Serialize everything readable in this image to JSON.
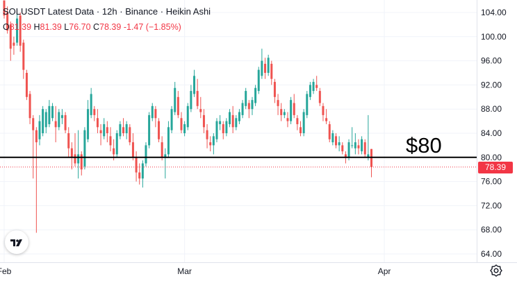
{
  "legend": {
    "symbol": "SOLUSDT",
    "title": "Latest Data",
    "interval": "12h",
    "exchange": "Binance",
    "style": "Heikin Ashi"
  },
  "ohlc": {
    "o_label": "O",
    "o_value": "81.39",
    "h_label": "H",
    "h_value": "81.39",
    "l_label": "L",
    "l_value": "76.70",
    "c_label": "C",
    "c_value": "78.39",
    "change": "-1.47 (−1.85%)"
  },
  "annotation": {
    "text": "$80",
    "level": 80
  },
  "last_price": {
    "label": "78.39",
    "value": 78.39
  },
  "icons": {
    "logo": "tradingview-logo-icon",
    "settings": "settings-gear-icon"
  },
  "colors": {
    "up": "#26a69a",
    "down": "#ef5350",
    "line": "#000000",
    "last": "#f23645"
  },
  "chart_data": {
    "type": "candlestick",
    "y_ticks": [
      "104.00",
      "100.00",
      "96.00",
      "92.00",
      "88.00",
      "84.00",
      "80.00",
      "76.00",
      "72.00",
      "68.00",
      "64.00"
    ],
    "ylim": [
      62,
      106
    ],
    "x_ticks": [
      {
        "label": "Feb",
        "index": 0
      },
      {
        "label": "Mar",
        "index": 56
      },
      {
        "label": "Apr",
        "index": 118
      }
    ],
    "horizontal_line": 80,
    "candles": [
      [
        106.0,
        106.0,
        103.0,
        103.5
      ],
      [
        104.0,
        105.0,
        100.5,
        101.0
      ],
      [
        102.0,
        102.5,
        96.0,
        98.0
      ],
      [
        99.0,
        100.0,
        97.0,
        98.5
      ],
      [
        99.0,
        104.0,
        98.5,
        103.0
      ],
      [
        103.5,
        104.0,
        97.5,
        98.5
      ],
      [
        99.0,
        99.5,
        93.0,
        94.5
      ],
      [
        94.0,
        94.5,
        89.5,
        90.0
      ],
      [
        90.5,
        91.0,
        85.5,
        86.5
      ],
      [
        86.5,
        87.0,
        76.5,
        84.5
      ],
      [
        84.5,
        85.0,
        67.5,
        82.5
      ],
      [
        83.0,
        87.0,
        82.0,
        86.0
      ],
      [
        84.0,
        88.5,
        83.5,
        88.0
      ],
      [
        85.0,
        88.0,
        84.0,
        87.5
      ],
      [
        85.5,
        89.5,
        85.0,
        88.5
      ],
      [
        86.5,
        89.0,
        86.0,
        88.5
      ],
      [
        86.0,
        88.5,
        82.5,
        85.0
      ],
      [
        85.0,
        88.0,
        84.5,
        87.5
      ],
      [
        86.5,
        88.0,
        85.5,
        87.0
      ],
      [
        87.0,
        87.5,
        84.0,
        84.5
      ],
      [
        84.0,
        85.0,
        80.0,
        81.5
      ],
      [
        81.5,
        82.5,
        78.0,
        80.0
      ],
      [
        80.5,
        84.0,
        78.5,
        79.0
      ],
      [
        79.0,
        84.5,
        76.5,
        80.5
      ],
      [
        80.5,
        81.0,
        77.0,
        78.0
      ],
      [
        78.5,
        85.0,
        78.0,
        84.5
      ],
      [
        83.0,
        89.5,
        82.5,
        88.0
      ],
      [
        87.0,
        91.5,
        86.5,
        90.5
      ],
      [
        88.0,
        88.5,
        86.0,
        87.0
      ],
      [
        86.5,
        88.0,
        84.0,
        85.0
      ],
      [
        84.5,
        85.5,
        82.0,
        84.0
      ],
      [
        83.5,
        86.5,
        83.0,
        85.5
      ],
      [
        85.0,
        86.0,
        82.5,
        84.0
      ],
      [
        83.5,
        85.0,
        81.0,
        82.0
      ],
      [
        81.5,
        83.0,
        79.5,
        80.5
      ],
      [
        80.5,
        84.5,
        80.0,
        84.0
      ],
      [
        83.5,
        86.0,
        83.0,
        85.5
      ],
      [
        85.0,
        86.5,
        83.5,
        84.0
      ],
      [
        84.0,
        86.0,
        83.0,
        85.5
      ],
      [
        85.0,
        85.5,
        82.0,
        82.5
      ],
      [
        82.5,
        84.0,
        79.5,
        80.0
      ],
      [
        80.0,
        81.0,
        76.0,
        77.5
      ],
      [
        77.5,
        79.0,
        75.5,
        76.5
      ],
      [
        76.5,
        79.5,
        75.0,
        79.0
      ],
      [
        79.0,
        82.5,
        78.5,
        82.0
      ],
      [
        82.0,
        87.5,
        81.5,
        87.0
      ],
      [
        86.5,
        89.0,
        86.0,
        88.5
      ],
      [
        88.0,
        88.5,
        85.0,
        86.5
      ],
      [
        86.0,
        86.5,
        82.5,
        83.0
      ],
      [
        82.5,
        83.5,
        79.5,
        80.0
      ],
      [
        80.0,
        81.5,
        76.5,
        80.5
      ],
      [
        80.5,
        86.0,
        80.0,
        85.0
      ],
      [
        84.5,
        88.5,
        84.0,
        88.0
      ],
      [
        87.5,
        92.5,
        87.0,
        91.5
      ],
      [
        90.0,
        91.0,
        86.5,
        87.0
      ],
      [
        86.5,
        87.5,
        84.0,
        84.5
      ],
      [
        84.0,
        86.0,
        83.5,
        85.5
      ],
      [
        85.0,
        89.0,
        84.5,
        88.5
      ],
      [
        88.0,
        92.0,
        87.5,
        91.0
      ],
      [
        90.5,
        94.5,
        90.0,
        93.5
      ],
      [
        91.0,
        93.0,
        88.0,
        88.5
      ],
      [
        88.0,
        90.0,
        86.5,
        87.5
      ],
      [
        87.0,
        88.0,
        84.0,
        85.0
      ],
      [
        84.5,
        85.5,
        81.5,
        83.0
      ],
      [
        82.5,
        83.5,
        81.0,
        82.0
      ],
      [
        82.0,
        84.0,
        80.5,
        83.5
      ],
      [
        83.0,
        86.5,
        82.5,
        86.0
      ],
      [
        85.5,
        87.0,
        84.5,
        86.0
      ],
      [
        85.5,
        86.0,
        83.0,
        84.0
      ],
      [
        84.0,
        86.5,
        83.5,
        86.0
      ],
      [
        85.5,
        88.0,
        85.0,
        87.5
      ],
      [
        87.0,
        88.5,
        84.0,
        85.0
      ],
      [
        85.0,
        87.0,
        84.5,
        86.5
      ],
      [
        86.0,
        88.0,
        85.5,
        87.5
      ],
      [
        87.0,
        89.5,
        86.5,
        89.0
      ],
      [
        88.5,
        91.5,
        88.0,
        91.0
      ],
      [
        89.0,
        89.5,
        86.5,
        88.0
      ],
      [
        88.0,
        90.0,
        87.0,
        89.5
      ],
      [
        89.0,
        92.0,
        88.5,
        91.5
      ],
      [
        91.0,
        95.0,
        90.5,
        94.5
      ],
      [
        93.5,
        98.0,
        93.0,
        96.0
      ],
      [
        95.5,
        96.5,
        93.0,
        94.0
      ],
      [
        94.0,
        97.0,
        93.5,
        96.5
      ],
      [
        95.5,
        96.0,
        92.0,
        93.0
      ],
      [
        92.5,
        93.0,
        89.0,
        90.0
      ],
      [
        89.5,
        90.5,
        87.0,
        88.5
      ],
      [
        88.0,
        89.0,
        86.0,
        87.0
      ],
      [
        87.0,
        88.0,
        86.5,
        87.5
      ],
      [
        86.5,
        87.5,
        85.0,
        86.0
      ],
      [
        86.0,
        90.0,
        85.5,
        89.5
      ],
      [
        89.0,
        90.5,
        86.5,
        87.0
      ],
      [
        86.5,
        87.0,
        84.5,
        85.5
      ],
      [
        85.0,
        86.0,
        83.5,
        84.0
      ],
      [
        84.0,
        88.0,
        83.5,
        87.5
      ],
      [
        87.0,
        91.0,
        86.5,
        90.5
      ],
      [
        90.0,
        92.5,
        89.5,
        92.0
      ],
      [
        91.0,
        93.0,
        90.5,
        92.5
      ],
      [
        92.0,
        93.5,
        91.0,
        91.5
      ],
      [
        91.0,
        91.5,
        88.5,
        89.0
      ],
      [
        88.5,
        89.0,
        86.0,
        87.0
      ],
      [
        86.5,
        88.0,
        85.5,
        86.0
      ],
      [
        85.5,
        86.0,
        82.5,
        83.0
      ],
      [
        82.5,
        84.5,
        82.0,
        84.0
      ],
      [
        83.5,
        84.0,
        81.5,
        82.0
      ],
      [
        82.0,
        83.5,
        81.0,
        82.5
      ],
      [
        82.0,
        82.5,
        80.5,
        81.0
      ],
      [
        80.5,
        81.0,
        79.0,
        80.0
      ],
      [
        80.0,
        83.0,
        79.5,
        82.5
      ],
      [
        82.0,
        85.0,
        81.5,
        82.0
      ],
      [
        81.5,
        84.0,
        80.5,
        82.5
      ],
      [
        82.0,
        83.0,
        80.5,
        81.5
      ],
      [
        81.0,
        83.5,
        80.5,
        83.0
      ],
      [
        82.5,
        83.0,
        80.0,
        80.5
      ],
      [
        80.0,
        87.0,
        79.5,
        80.5
      ],
      [
        81.39,
        81.39,
        76.7,
        78.39
      ]
    ]
  }
}
